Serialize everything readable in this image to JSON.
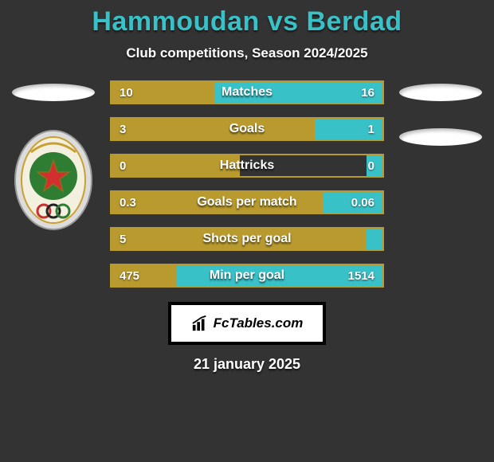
{
  "title": "Hammoudan vs Berdad",
  "subtitle": "Club competitions, Season 2024/2025",
  "colors": {
    "title_color": "#39c1c8",
    "bar_border": "#b89a2e",
    "left_fill": "#b89a2e",
    "right_fill": "#39c1c8",
    "background": "#333333"
  },
  "stats": [
    {
      "label": "Matches",
      "left_val": "10",
      "right_val": "16",
      "left_pct": 38,
      "right_pct": 62
    },
    {
      "label": "Goals",
      "left_val": "3",
      "right_val": "1",
      "left_pct": 75,
      "right_pct": 25
    },
    {
      "label": "Hattricks",
      "left_val": "0",
      "right_val": "0",
      "left_pct": 50,
      "right_pct": 0
    },
    {
      "label": "Goals per match",
      "left_val": "0.3",
      "right_val": "0.06",
      "left_pct": 78,
      "right_pct": 22
    },
    {
      "label": "Shots per goal",
      "left_val": "5",
      "right_val": "",
      "left_pct": 100,
      "right_pct": 0
    },
    {
      "label": "Min per goal",
      "left_val": "475",
      "right_val": "1514",
      "left_pct": 24,
      "right_pct": 76
    }
  ],
  "footer_brand": "FcTables.com",
  "date": "21 january 2025"
}
